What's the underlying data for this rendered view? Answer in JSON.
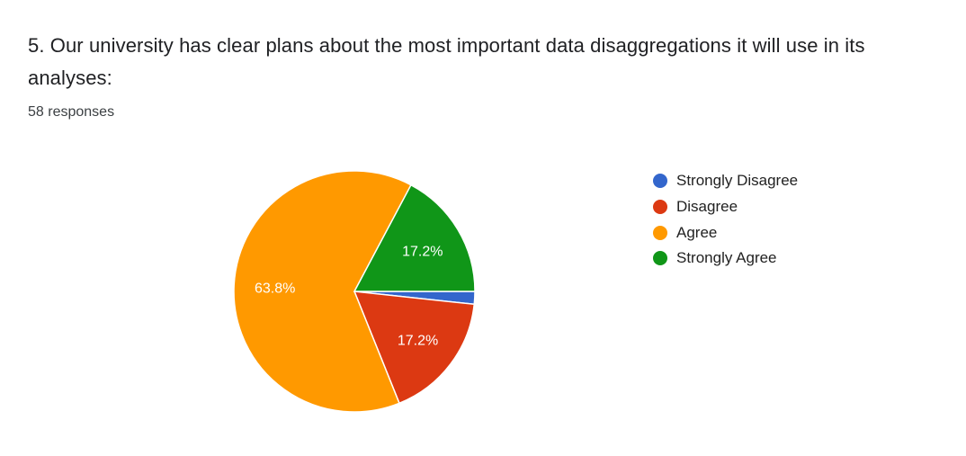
{
  "question": {
    "title": "5. Our university has clear plans about the most important data disaggregations it will use in its analyses:",
    "responses": "58 responses"
  },
  "chart_data": {
    "type": "pie",
    "categories": [
      "Strongly Disagree",
      "Disagree",
      "Agree",
      "Strongly Agree"
    ],
    "values": [
      1.7,
      17.2,
      63.8,
      17.2
    ],
    "counts": [
      1,
      10,
      37,
      10
    ],
    "labels": [
      "",
      "17.2%",
      "63.8%",
      "17.2%"
    ],
    "colors": [
      "#3366cc",
      "#dc3912",
      "#ff9900",
      "#109618"
    ],
    "legend_position": "right",
    "start_angle_deg": 0,
    "direction": "clockwise"
  }
}
